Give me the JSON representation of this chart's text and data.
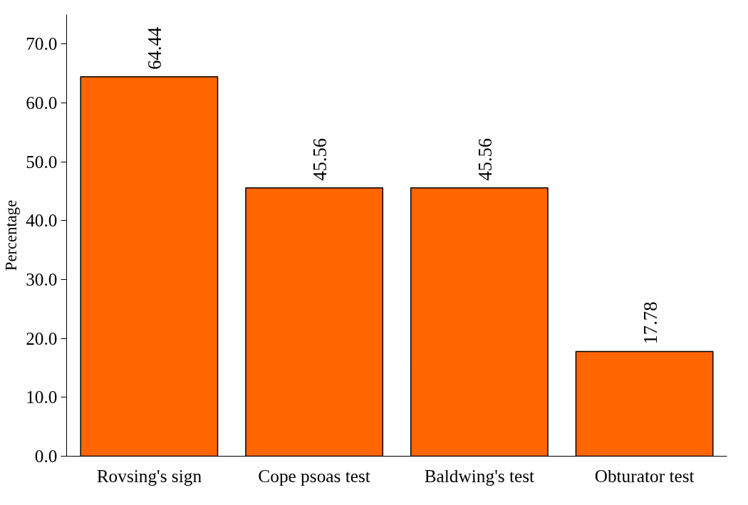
{
  "chart_data": {
    "type": "bar",
    "ylabel": "Percentage",
    "categories": [
      "Rovsing's sign",
      "Cope psoas test",
      "Baldwing's test",
      "Obturator test"
    ],
    "values": [
      64.44,
      45.56,
      45.56,
      17.78
    ],
    "color": "#ff6600",
    "ylim": [
      0,
      75
    ],
    "yticks": [
      {
        "value": 0,
        "label": "0.0"
      },
      {
        "value": 10,
        "label": "10.0"
      },
      {
        "value": 20,
        "label": "20.0"
      },
      {
        "value": 30,
        "label": "30.0"
      },
      {
        "value": 40,
        "label": "40.0"
      },
      {
        "value": 50,
        "label": "50.0"
      },
      {
        "value": 60,
        "label": "60.0"
      },
      {
        "value": 70,
        "label": "70.0"
      }
    ],
    "data_labels": true,
    "grid": false
  }
}
